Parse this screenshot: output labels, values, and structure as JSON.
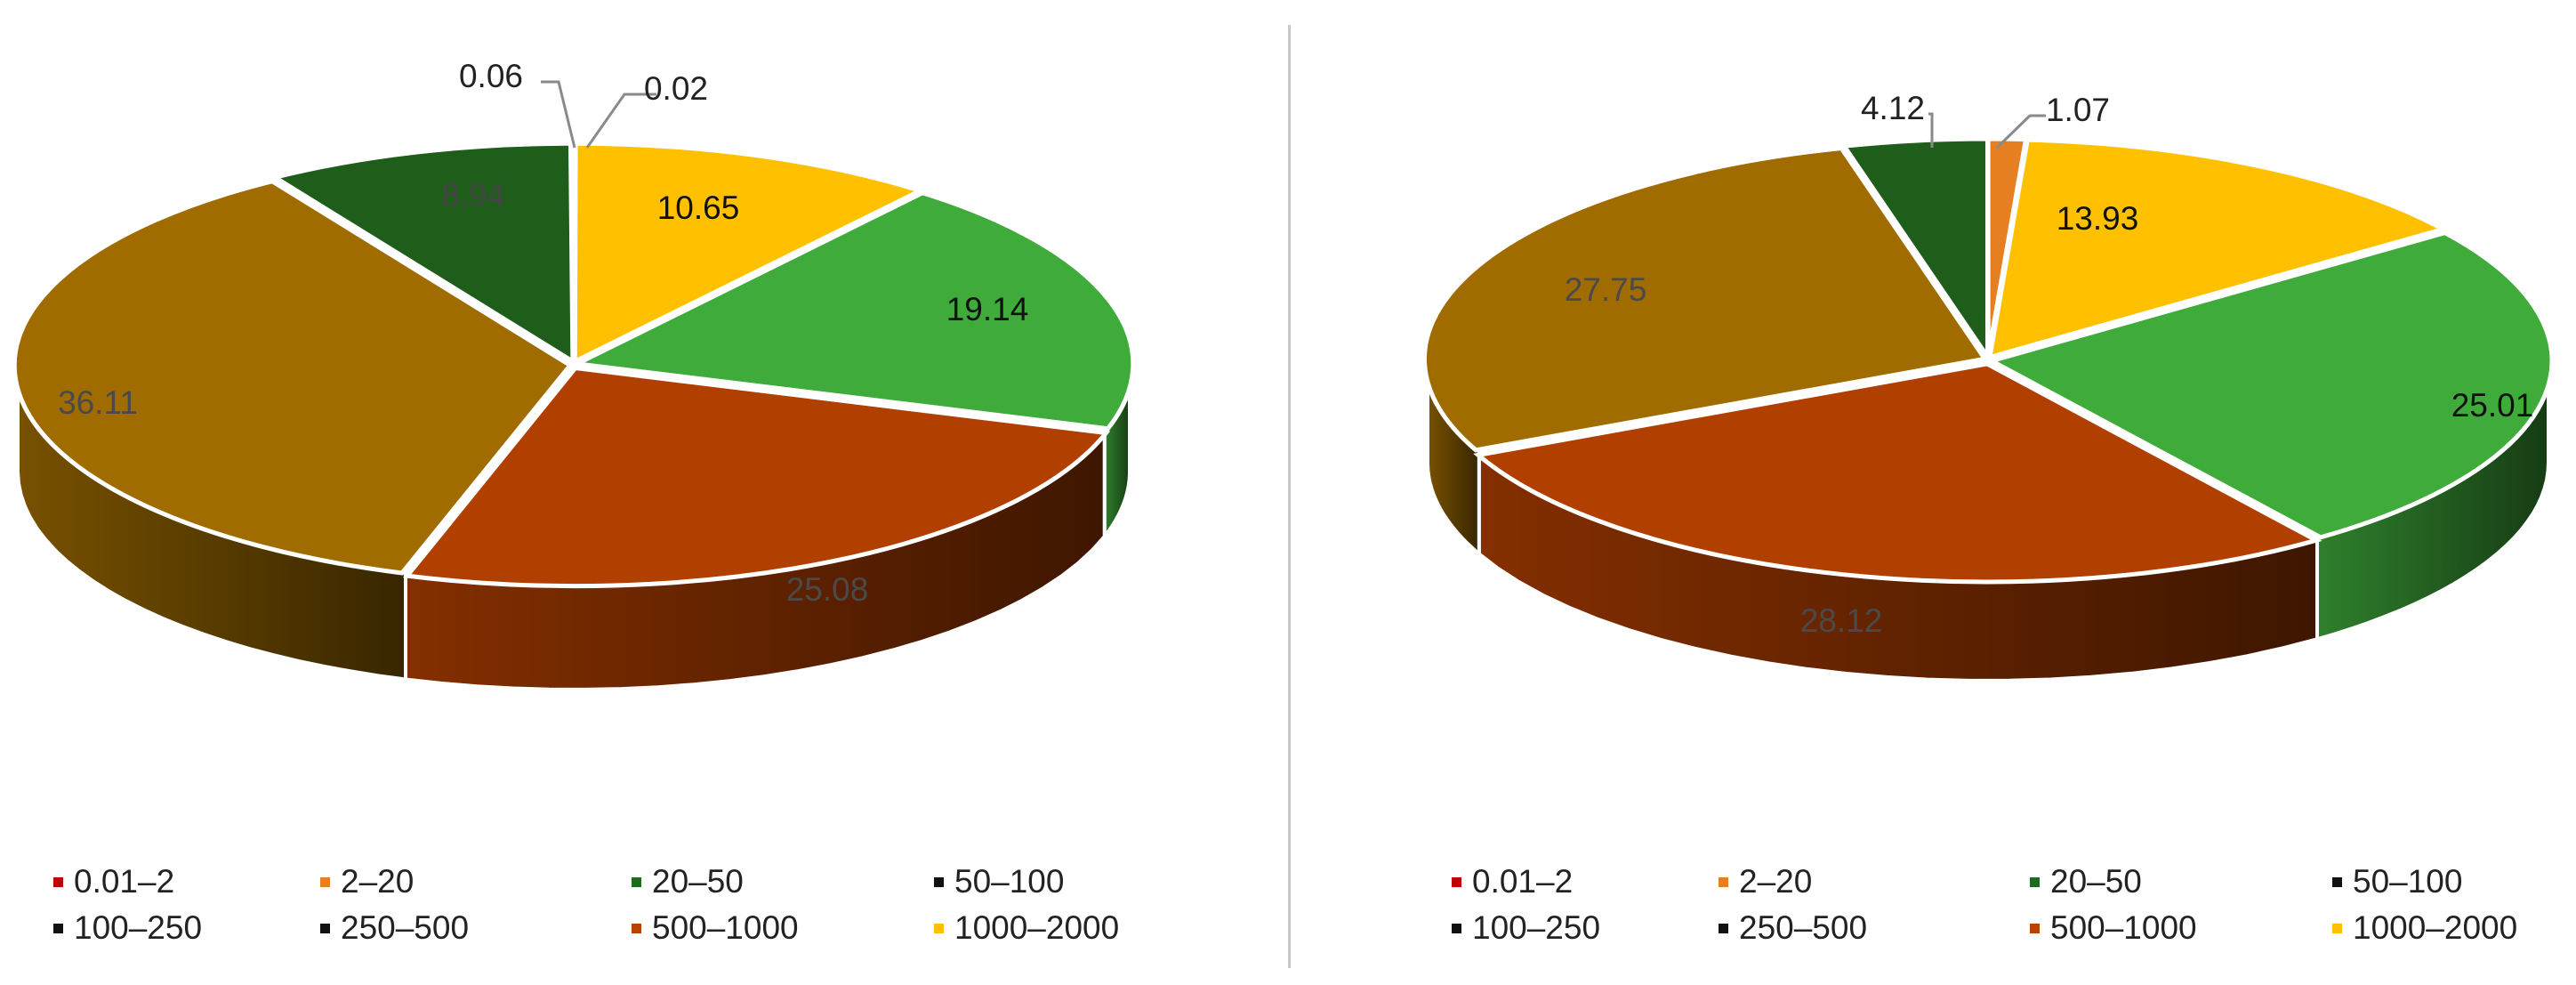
{
  "chart_data": [
    {
      "type": "pie",
      "title": "",
      "categories": [
        "0.01–2",
        "2–20",
        "20–50",
        "50–100",
        "100–250",
        "250–500",
        "500–1000",
        "1000–2000"
      ],
      "colors": [
        "#c00000",
        "#e67e22",
        "#1e6b1e",
        "#111111",
        "#111111",
        "#111111",
        "#b84300",
        "#ffc000"
      ],
      "slices": [
        {
          "label": "0.02",
          "value": 0.02,
          "color": "#c00000"
        },
        {
          "label": "10.65",
          "value": 10.65,
          "color": "#ffc000"
        },
        {
          "label": "19.14",
          "value": 19.14,
          "color": "#3fab3a"
        },
        {
          "label": "25.08",
          "value": 25.08,
          "color": "#b03f00"
        },
        {
          "label": "36.11",
          "value": 36.11,
          "color": "#a06c00"
        },
        {
          "label": "8.94",
          "value": 8.94,
          "color": "#1e5d1a"
        },
        {
          "label": "0.06",
          "value": 0.06,
          "color": "#e67e22"
        }
      ],
      "legend": "bottom"
    },
    {
      "type": "pie",
      "title": "",
      "categories": [
        "0.01–2",
        "2–20",
        "20–50",
        "50–100",
        "100–250",
        "250–500",
        "500–1000",
        "1000–2000"
      ],
      "colors": [
        "#c00000",
        "#e67e22",
        "#1e6b1e",
        "#111111",
        "#111111",
        "#111111",
        "#b84300",
        "#ffc000"
      ],
      "slices": [
        {
          "label": "1.07",
          "value": 1.07,
          "color": "#e67e22"
        },
        {
          "label": "13.93",
          "value": 13.93,
          "color": "#ffc000"
        },
        {
          "label": "25.01",
          "value": 25.01,
          "color": "#3fab3a"
        },
        {
          "label": "28.12",
          "value": 28.12,
          "color": "#b03f00"
        },
        {
          "label": "27.75",
          "value": 27.75,
          "color": "#a06c00"
        },
        {
          "label": "4.12",
          "value": 4.12,
          "color": "#1e5d1a"
        }
      ],
      "legend": "bottom"
    }
  ]
}
